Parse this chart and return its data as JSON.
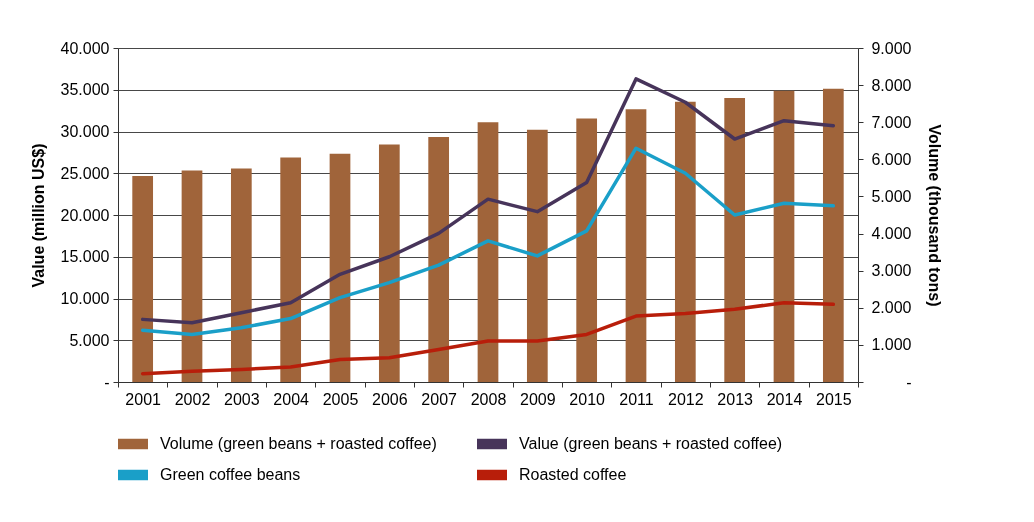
{
  "chart_data": {
    "type": "bar",
    "ylabel": "Value (million US$)",
    "y2label": "Volume (thousand tons)",
    "categories": [
      "2001",
      "2002",
      "2003",
      "2004",
      "2005",
      "2006",
      "2007",
      "2008",
      "2009",
      "2010",
      "2011",
      "2012",
      "2013",
      "2014",
      "2015"
    ],
    "series": [
      {
        "name": "Volume (green beans + roasted coffee)",
        "axis": "y2",
        "color": "#a0643a",
        "values": [
          5550,
          5700,
          5750,
          6050,
          6150,
          6400,
          6600,
          7000,
          6800,
          7100,
          7350,
          7550,
          7650,
          7850,
          7900
        ]
      },
      {
        "name": "Value (green beans + roasted coffee)",
        "type": "line",
        "color": "#47345a",
        "values": [
          7500,
          7100,
          8300,
          9500,
          12900,
          15000,
          17800,
          21900,
          20400,
          23900,
          36300,
          33500,
          29100,
          31300,
          30700
        ]
      },
      {
        "name": "Green coffee beans",
        "type": "line",
        "color": "#1a9fc8",
        "values": [
          6200,
          5700,
          6500,
          7600,
          10100,
          11900,
          14000,
          16900,
          15100,
          18100,
          28000,
          25000,
          20000,
          21400,
          21100
        ]
      },
      {
        "name": "Roasted coffee",
        "type": "line",
        "color": "#b81e0a",
        "values": [
          1000,
          1300,
          1500,
          1800,
          2700,
          2900,
          3900,
          4900,
          4900,
          5700,
          7900,
          8200,
          8700,
          9500,
          9300
        ]
      }
    ],
    "ylim": [
      0,
      40000
    ],
    "yticks": [
      {
        "value": 0,
        "label": "-"
      },
      {
        "value": 5000,
        "label": "5.000"
      },
      {
        "value": 10000,
        "label": "10.000"
      },
      {
        "value": 15000,
        "label": "15.000"
      },
      {
        "value": 20000,
        "label": "20.000"
      },
      {
        "value": 25000,
        "label": "25.000"
      },
      {
        "value": 30000,
        "label": "30.000"
      },
      {
        "value": 35000,
        "label": "35.000"
      },
      {
        "value": 40000,
        "label": "40.000"
      }
    ],
    "y2lim": [
      0,
      9000
    ],
    "y2ticks": [
      {
        "value": 0,
        "label": "-"
      },
      {
        "value": 1000,
        "label": "1.000"
      },
      {
        "value": 2000,
        "label": "2.000"
      },
      {
        "value": 3000,
        "label": "3.000"
      },
      {
        "value": 4000,
        "label": "4.000"
      },
      {
        "value": 5000,
        "label": "5.000"
      },
      {
        "value": 6000,
        "label": "6.000"
      },
      {
        "value": 7000,
        "label": "7.000"
      },
      {
        "value": 8000,
        "label": "8.000"
      },
      {
        "value": 9000,
        "label": "9.000"
      }
    ],
    "grid": "y",
    "legend": "bottom"
  }
}
